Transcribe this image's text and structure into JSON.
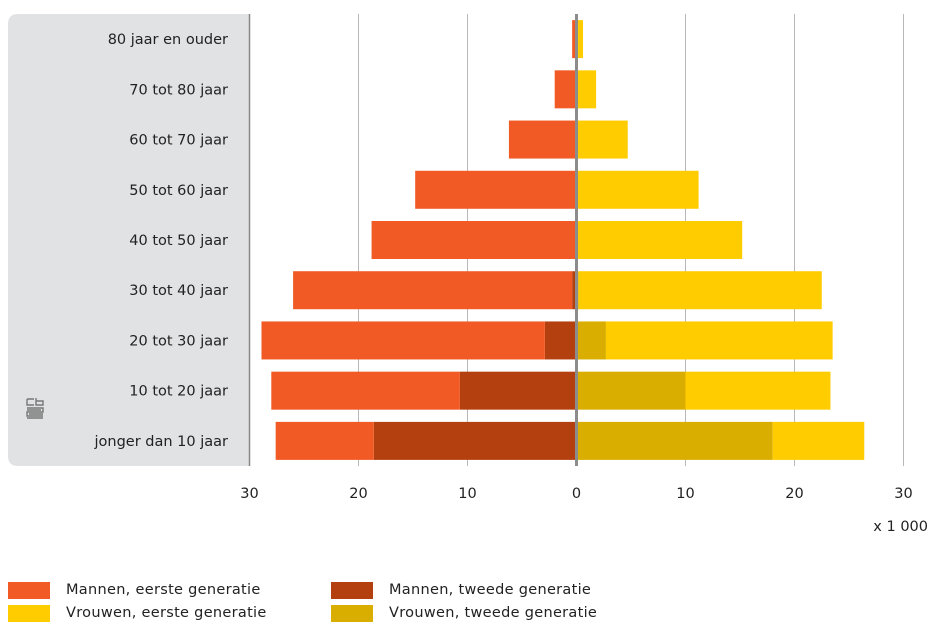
{
  "chart_data": {
    "type": "bar",
    "orientation": "horizontal-diverging",
    "categories": [
      "80 jaar en ouder",
      "70 tot 80 jaar",
      "60 tot 70 jaar",
      "50 tot 60 jaar",
      "40 tot 50 jaar",
      "30 tot 40 jaar",
      "20 tot 30 jaar",
      "10 tot 20 jaar",
      "jonger dan 10 jaar"
    ],
    "series": [
      {
        "name": "Mannen, eerste generatie",
        "side": "left",
        "color": "#f15a24",
        "values": [
          0.4,
          2.0,
          6.2,
          14.8,
          18.7,
          25.6,
          26.0,
          17.3,
          9.0
        ]
      },
      {
        "name": "Mannen, tweede generatie",
        "side": "left",
        "color": "#b5400f",
        "values": [
          0,
          0,
          0,
          0,
          0.1,
          0.4,
          2.9,
          10.7,
          18.6
        ]
      },
      {
        "name": "Vrouwen, eerste generatie",
        "side": "right",
        "color": "#ffcc00",
        "values": [
          0.6,
          1.8,
          4.7,
          11.2,
          15.2,
          22.3,
          20.8,
          13.3,
          8.4
        ]
      },
      {
        "name": "Vrouwen, tweede generatie",
        "side": "right",
        "color": "#d9ae00",
        "values": [
          0,
          0,
          0,
          0,
          0,
          0.2,
          2.7,
          10.0,
          18.0
        ]
      }
    ],
    "xlim": [
      -30,
      30
    ],
    "x_ticks": [
      "30",
      "20",
      "10",
      "0",
      "10",
      "20",
      "30"
    ],
    "unit_label": "x 1 000",
    "grid": true,
    "legend_position": "bottom"
  },
  "branding": {
    "logo_icon": "cbs-logo-icon"
  }
}
